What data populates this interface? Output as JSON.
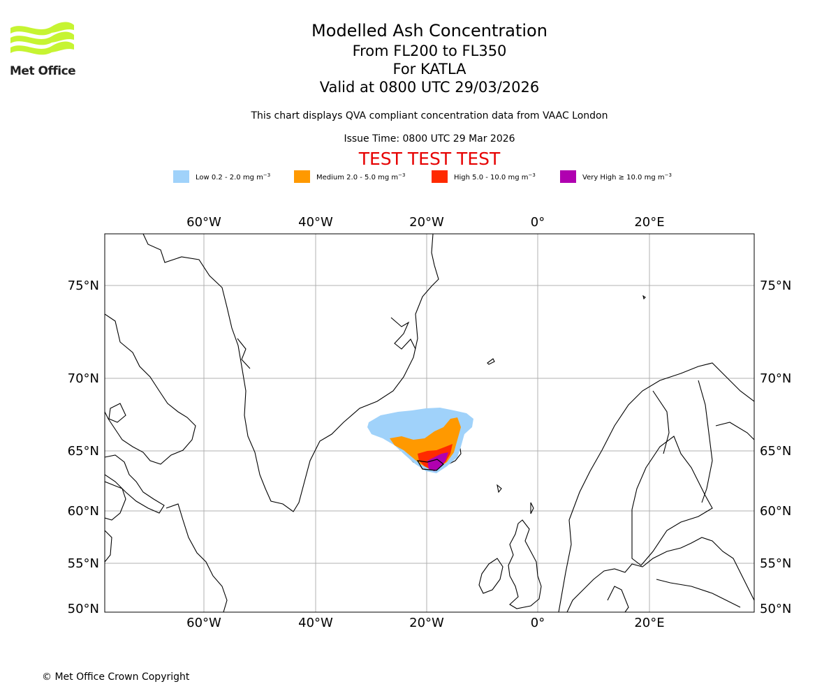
{
  "header": {
    "title": "Modelled Ash Concentration",
    "levels": "From FL200 to FL350",
    "volcano": "For KATLA",
    "valid": "Valid at 0800 UTC 29/03/2026",
    "description": "This chart displays QVA compliant concentration data from VAAC London",
    "issue_time": "Issue Time: 0800 UTC 29 Mar 2026",
    "test_banner": "TEST TEST TEST"
  },
  "logo": {
    "text": "Met Office",
    "color": "#c6f432"
  },
  "legend": [
    {
      "label": "Low 0.2 - 2.0 mg m",
      "color": "#a0d2fa"
    },
    {
      "label": "Medium 2.0 - 5.0 mg m",
      "color": "#ff9900"
    },
    {
      "label": "High 5.0 - 10.0 mg m",
      "color": "#ff2a00"
    },
    {
      "label": "Very High ≥ 10.0 mg m",
      "color": "#b000b0"
    }
  ],
  "legend_unit_exponent": "−3",
  "map": {
    "region": "North Atlantic, Greenland, Iceland, Scandinavia",
    "lon_range": [
      -78,
      38
    ],
    "lat_range": [
      50,
      78
    ],
    "lon_ticks": [
      "60°W",
      "40°W",
      "20°W",
      "0°",
      "20°E"
    ],
    "lat_ticks": [
      "75°N",
      "70°N",
      "65°N",
      "60°N",
      "55°N",
      "50°N"
    ],
    "gridlines": true,
    "ash_cloud_location": "Iceland, extending north-west of the island"
  },
  "footer": {
    "copyright": "© Met Office Crown Copyright"
  }
}
